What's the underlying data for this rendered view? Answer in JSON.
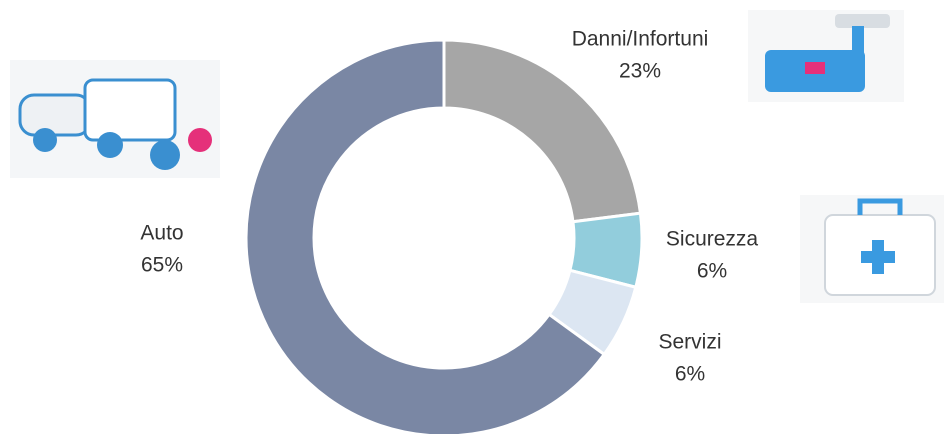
{
  "chart_data": {
    "type": "donut",
    "categories": [
      "Danni/Infortuni",
      "Sicurezza",
      "Servizi",
      "Auto"
    ],
    "values": [
      23,
      6,
      6,
      65
    ],
    "value_labels": [
      "23%",
      "6%",
      "6%",
      "65%"
    ],
    "colors": [
      "#a6a6a6",
      "#92cddc",
      "#dce6f2",
      "#7a87a4"
    ]
  }
}
